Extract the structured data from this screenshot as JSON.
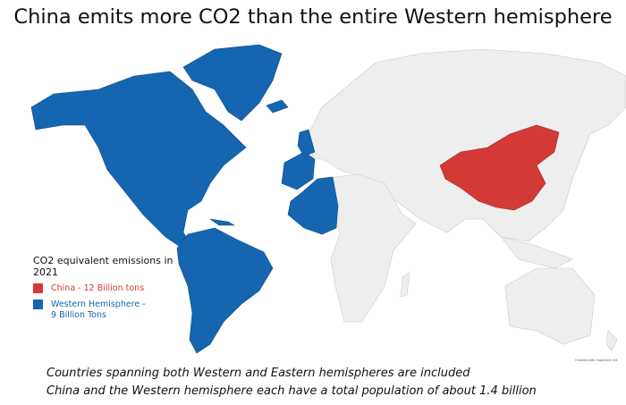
{
  "title": "China emits more CO2 than the entire Western hemisphere",
  "legend": {
    "title": "CO2 equivalent emissions in 2021",
    "items": [
      {
        "label": "China - 12 Billion tons",
        "color": "#d33a36"
      },
      {
        "label": "Western Hemisphere - 9 Billion Tons",
        "color": "#1565b0"
      }
    ]
  },
  "notes": [
    "Countries spanning both Western and Eastern hemispheres are included",
    "China and the Western hemisphere each have a total population of about 1.4 billion"
  ],
  "watermark": "Created with mapchart.net",
  "colors": {
    "china": "#d33a36",
    "western": "#1565b0",
    "other": "#eeeeee"
  }
}
